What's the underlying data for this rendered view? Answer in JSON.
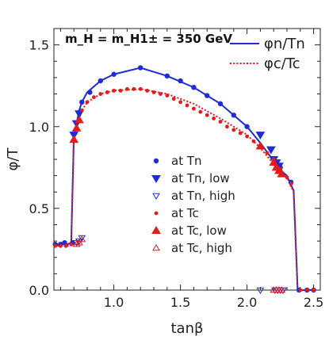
{
  "chart_data": {
    "type": "line",
    "annotation": "m_H = m_H1± = 350 GeV",
    "xlabel": "tanβ",
    "ylabel": "φ/T",
    "xlim": [
      0.55,
      2.55
    ],
    "ylim": [
      0.0,
      1.6
    ],
    "x_ticks": [
      "1.0",
      "1.5",
      "2.0",
      "2.5"
    ],
    "y_ticks": [
      "0.0",
      "0.5",
      "1.0",
      "1.5"
    ],
    "grid": false,
    "legend_placement": "top-right",
    "series": [
      {
        "name": "φn/Tn",
        "kind": "line",
        "color": "#1f2bd6",
        "x": [
          0.55,
          0.6,
          0.65,
          0.68,
          0.7,
          0.72,
          0.74,
          0.76,
          0.8,
          0.9,
          1.0,
          1.2,
          1.4,
          1.6,
          1.8,
          2.0,
          2.1,
          2.2,
          2.23,
          2.27,
          2.3,
          2.32,
          2.35,
          2.38,
          2.4,
          2.45,
          2.5
        ],
        "y": [
          0.28,
          0.28,
          0.28,
          0.29,
          0.95,
          1.02,
          1.1,
          1.15,
          1.21,
          1.28,
          1.32,
          1.36,
          1.31,
          1.24,
          1.14,
          1.0,
          0.9,
          0.79,
          0.76,
          0.72,
          0.7,
          0.66,
          0.61,
          0.0,
          0.0,
          0.0,
          0.0
        ]
      },
      {
        "name": "φc/Tc",
        "kind": "dotted-line",
        "color": "#e21b1b",
        "x": [
          0.55,
          0.6,
          0.65,
          0.68,
          0.7,
          0.72,
          0.74,
          0.76,
          0.8,
          0.9,
          1.0,
          1.2,
          1.4,
          1.6,
          1.8,
          2.0,
          2.1,
          2.2,
          2.23,
          2.27,
          2.3,
          2.32,
          2.35,
          2.38,
          2.4,
          2.45,
          2.5
        ],
        "y": [
          0.27,
          0.27,
          0.27,
          0.28,
          0.93,
          1.0,
          1.05,
          1.1,
          1.15,
          1.2,
          1.22,
          1.23,
          1.2,
          1.14,
          1.05,
          0.95,
          0.87,
          0.77,
          0.74,
          0.71,
          0.69,
          0.65,
          0.6,
          0.0,
          0.0,
          0.0,
          0.0
        ]
      },
      {
        "name": "at Tn",
        "kind": "marker",
        "marker": "circle",
        "color": "#1f2bd6",
        "x": [
          0.56,
          0.6,
          0.63,
          0.69,
          0.76,
          0.82,
          0.9,
          1.0,
          1.2,
          1.4,
          1.5,
          1.6,
          1.7,
          1.8,
          1.9,
          2.0,
          2.22,
          2.25,
          2.33,
          2.39,
          2.45,
          2.5
        ],
        "y": [
          0.28,
          0.28,
          0.29,
          0.29,
          1.15,
          1.21,
          1.28,
          1.32,
          1.36,
          1.31,
          1.28,
          1.24,
          1.19,
          1.14,
          1.07,
          1.0,
          0.77,
          0.75,
          0.66,
          0.0,
          0.0,
          0.0
        ]
      },
      {
        "name": "at Tn, low",
        "kind": "marker",
        "marker": "triangle-down",
        "color": "#1f2bd6",
        "x": [
          0.7,
          0.72,
          0.74,
          2.1,
          2.18,
          2.2,
          2.22,
          2.24
        ],
        "y": [
          0.95,
          1.02,
          1.08,
          0.95,
          0.86,
          0.8,
          0.78,
          0.76
        ]
      },
      {
        "name": "at Tn, high",
        "kind": "marker",
        "marker": "triangle-down-open",
        "color": "#1f2bd6",
        "x": [
          0.72,
          0.74,
          0.76,
          2.1,
          2.21,
          2.23,
          2.25,
          2.27
        ],
        "y": [
          0.29,
          0.3,
          0.32,
          0.0,
          0.0,
          0.0,
          0.0,
          0.0
        ]
      },
      {
        "name": "at Tc",
        "kind": "marker",
        "marker": "dot",
        "color": "#e21b1b",
        "x": [
          0.56,
          0.6,
          0.64,
          0.68,
          0.76,
          0.8,
          0.85,
          0.9,
          0.95,
          1.0,
          1.05,
          1.1,
          1.15,
          1.2,
          1.25,
          1.3,
          1.35,
          1.4,
          1.45,
          1.5,
          1.55,
          1.6,
          1.65,
          1.7,
          1.75,
          1.8,
          1.85,
          1.9,
          1.95,
          2.0,
          2.05,
          2.1,
          2.15,
          2.2,
          2.25,
          2.3,
          2.33,
          2.4,
          2.45,
          2.5
        ],
        "y": [
          0.27,
          0.27,
          0.27,
          0.28,
          1.1,
          1.15,
          1.18,
          1.2,
          1.21,
          1.22,
          1.22,
          1.23,
          1.23,
          1.23,
          1.22,
          1.21,
          1.2,
          1.19,
          1.17,
          1.15,
          1.13,
          1.11,
          1.09,
          1.07,
          1.05,
          1.03,
          1.0,
          0.98,
          0.96,
          0.94,
          0.91,
          0.88,
          0.84,
          0.8,
          0.74,
          0.69,
          0.65,
          0.0,
          0.0,
          0.0
        ]
      },
      {
        "name": "at Tc, low",
        "kind": "marker",
        "marker": "triangle-up",
        "color": "#e21b1b",
        "x": [
          0.7,
          0.72,
          0.74,
          2.1,
          2.2,
          2.22,
          2.24,
          2.26
        ],
        "y": [
          0.92,
          0.99,
          1.04,
          0.88,
          0.78,
          0.75,
          0.73,
          0.71
        ]
      },
      {
        "name": "at Tc, high",
        "kind": "marker",
        "marker": "triangle-up-open",
        "color": "#e21b1b",
        "x": [
          0.72,
          0.74,
          0.76,
          2.2,
          2.22,
          2.24,
          2.26
        ],
        "y": [
          0.28,
          0.29,
          0.31,
          0.0,
          0.0,
          0.0,
          0.0
        ]
      }
    ],
    "legend": {
      "lines": [
        {
          "label": "φn/Tn",
          "series": "φn/Tn"
        },
        {
          "label": "φc/Tc",
          "series": "φc/Tc"
        }
      ],
      "markers": [
        {
          "label": "at Tn",
          "series": "at Tn"
        },
        {
          "label": "at Tn, low",
          "series": "at Tn, low"
        },
        {
          "label": "at Tn, high",
          "series": "at Tn, high"
        },
        {
          "label": "at Tc",
          "series": "at Tc"
        },
        {
          "label": "at Tc, low",
          "series": "at Tc, low"
        },
        {
          "label": "at Tc, high",
          "series": "at Tc, high"
        }
      ]
    }
  }
}
